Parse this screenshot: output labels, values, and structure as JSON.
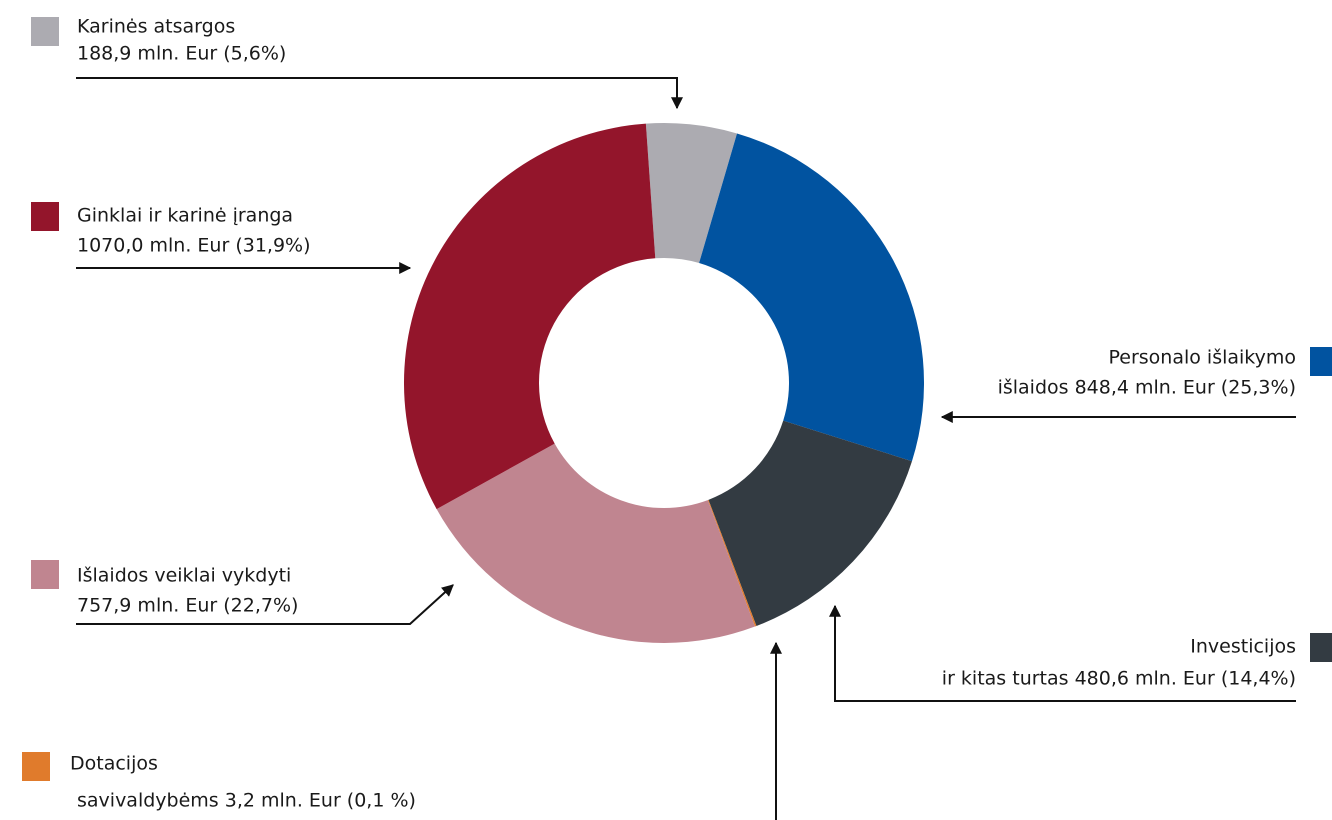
{
  "chart_data": {
    "type": "donut",
    "categories": [
      "Karinės atsargos",
      "Personalo išlaikymo",
      "Investicijos",
      "Dotacijos",
      "Išlaidos veiklai vykdyti",
      "Ginklai ir karinė įranga"
    ],
    "values": [
      188.9,
      848.4,
      480.6,
      3.2,
      757.9,
      1070.0
    ],
    "value_labels": [
      "188,9 mln. Eur (5,6%)",
      "išlaidos 848,4 mln. Eur (25,3%)",
      "ir kitas turtas 480,6 mln. Eur (14,4%)",
      "savivaldybėms 3,2 mln. Eur (0,1 %)",
      "757,9 mln. Eur (22,7%)",
      "1070,0 mln. Eur (31,9%)"
    ],
    "colors": [
      "#acabb1",
      "#0153a0",
      "#333b42",
      "#e07b2c",
      "#c08590",
      "#93152b"
    ]
  }
}
